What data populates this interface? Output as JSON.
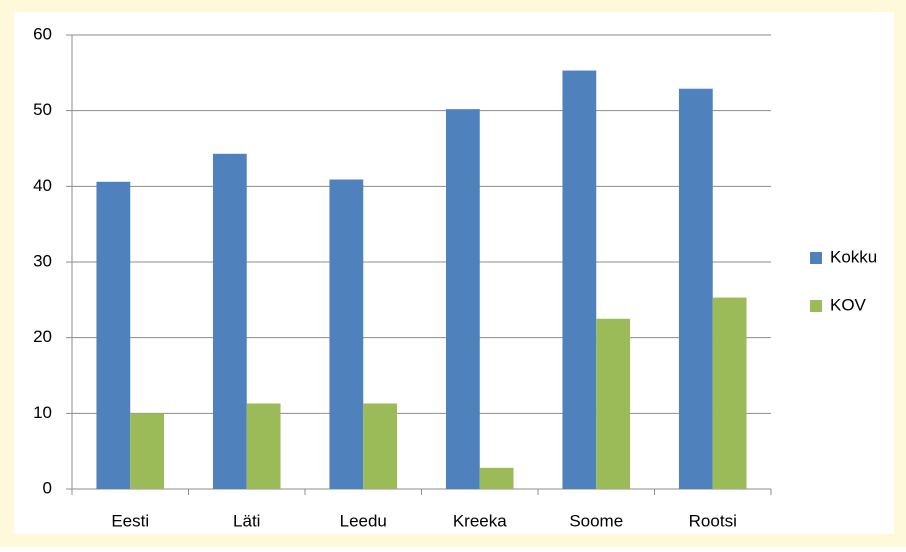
{
  "chart_data": {
    "type": "bar",
    "categories": [
      "Eesti",
      "Läti",
      "Leedu",
      "Kreeka",
      "Soome",
      "Rootsi"
    ],
    "series": [
      {
        "name": "Kokku",
        "color": "#4f81bd",
        "values": [
          40.6,
          44.3,
          40.9,
          50.2,
          55.3,
          52.9
        ]
      },
      {
        "name": "KOV",
        "color": "#9bbb59",
        "values": [
          10.0,
          11.3,
          11.3,
          2.8,
          22.5,
          25.3
        ]
      }
    ],
    "ylim": [
      0,
      60
    ],
    "yticks": [
      0,
      10,
      20,
      30,
      40,
      50,
      60
    ],
    "grid": true,
    "legend": "right"
  }
}
